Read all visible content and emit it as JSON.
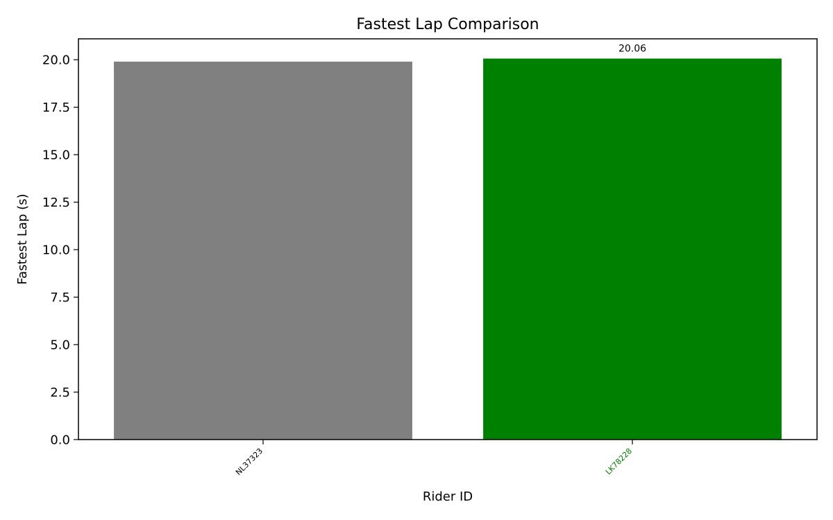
{
  "chart_data": {
    "type": "bar",
    "title": "Fastest Lap Comparison",
    "xlabel": "Rider ID",
    "ylabel": "Fastest Lap (s)",
    "categories": [
      "NL37323",
      "LK78228"
    ],
    "values": [
      19.9,
      20.06
    ],
    "bar_colors": [
      "#808080",
      "#008000"
    ],
    "category_label_colors": [
      "#000000",
      "#008000"
    ],
    "ylim": [
      0,
      21.1
    ],
    "yticks": [
      0.0,
      2.5,
      5.0,
      7.5,
      10.0,
      12.5,
      15.0,
      17.5,
      20.0
    ],
    "ytick_labels": [
      "0.0",
      "2.5",
      "5.0",
      "7.5",
      "10.0",
      "12.5",
      "15.0",
      "17.5",
      "20.0"
    ],
    "data_labels": [
      null,
      "20.06"
    ],
    "grid": false
  }
}
